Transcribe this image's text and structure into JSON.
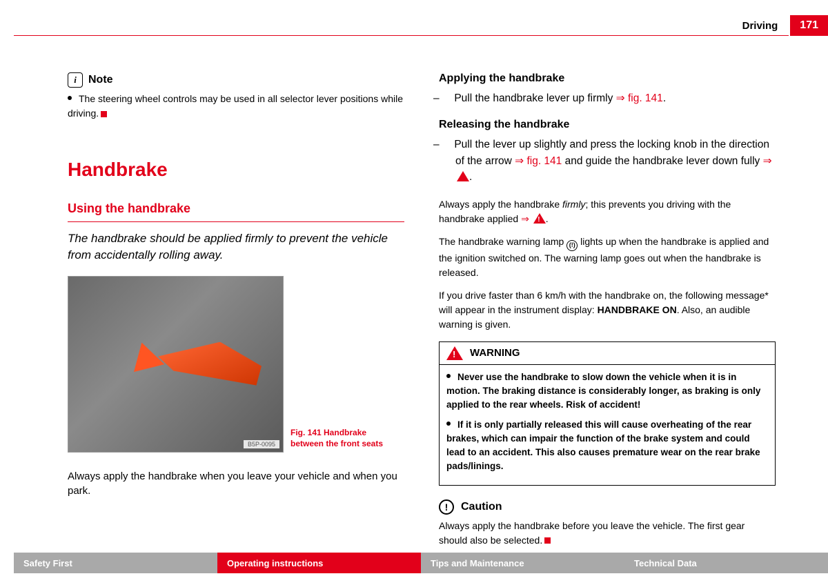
{
  "header": {
    "section": "Driving",
    "page_number": "171"
  },
  "left_column": {
    "note": {
      "title": "Note",
      "body": "The steering wheel controls may be used in all selector lever positions while driving."
    },
    "heading": "Handbrake",
    "subheading": "Using the handbrake",
    "intro": "The handbrake should be applied firmly to prevent the vehicle from accidentally rolling away.",
    "figure": {
      "label": "B5P-0095",
      "caption": "Fig. 141   Handbrake between the front seats"
    },
    "closing": "Always apply the handbrake when you leave your vehicle and when you park."
  },
  "right_column": {
    "applying": {
      "title": "Applying the handbrake",
      "step": "Pull the handbrake lever up firmly ",
      "ref": "fig. 141"
    },
    "releasing": {
      "title": "Releasing the handbrake",
      "step_a": "Pull the lever up slightly and press the locking knob in the direction of the arrow ",
      "ref": "fig. 141",
      "step_b": " and guide the handbrake lever down fully "
    },
    "para1_a": "Always apply the handbrake ",
    "para1_italic": "firmly",
    "para1_b": "; this prevents you driving with the handbrake applied ",
    "para2": "The handbrake warning lamp ",
    "para2_b": " lights up when the handbrake is applied and the ignition switched on. The warning lamp goes out when the handbrake is released.",
    "para3_a": "If you drive faster than 6 km/h with the handbrake on, the following message* will appear in the instrument display: ",
    "para3_bold": "HANDBRAKE ON",
    "para3_b": ". Also, an audible warning is given.",
    "warning": {
      "title": "WARNING",
      "item1": "Never use the handbrake to slow down the vehicle when it is in motion. The braking distance is considerably longer, as braking is only applied to the rear wheels. Risk of accident!",
      "item2": "If it is only partially released this will cause overheating of the rear brakes, which can impair the function of the brake system and could lead to an accident. This also causes premature wear on the rear brake pads/linings."
    },
    "caution": {
      "title": "Caution",
      "body": "Always apply the handbrake before you leave the vehicle. The first gear should also be selected."
    }
  },
  "footer": {
    "tabs": [
      "Safety First",
      "Operating instructions",
      "Tips and Maintenance",
      "Technical Data"
    ],
    "active_index": 1
  },
  "colors": {
    "accent": "#e2001a",
    "tab_inactive": "#a9a9a9"
  }
}
